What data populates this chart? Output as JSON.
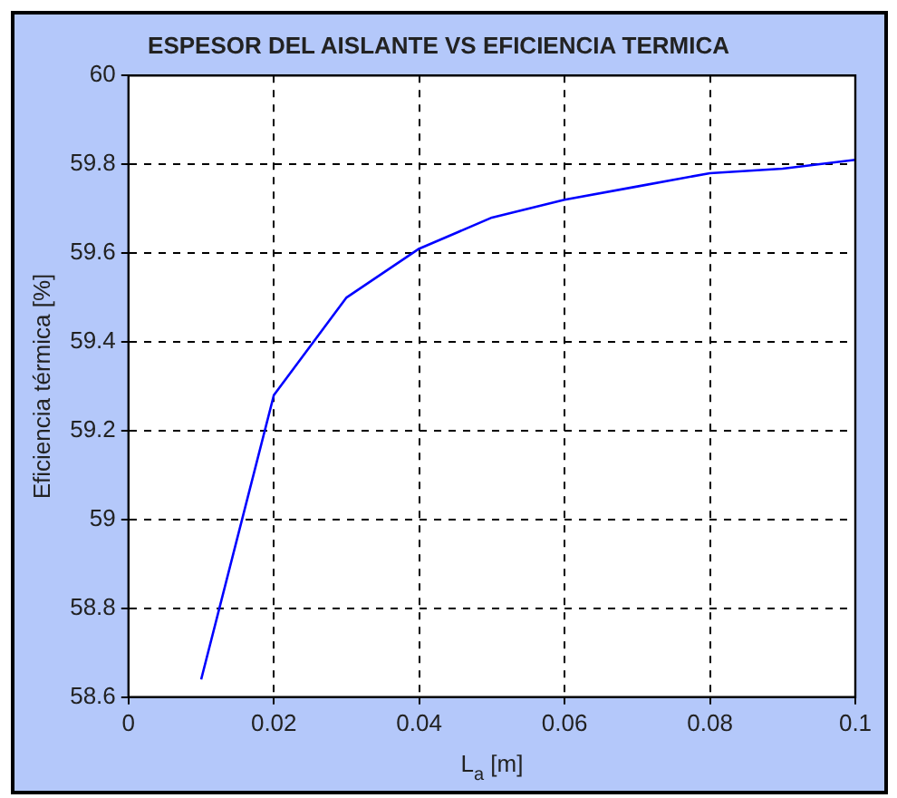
{
  "chart_data": {
    "type": "line",
    "title": "ESPESOR DEL AISLANTE VS EFICIENCIA TERMICA",
    "xlabel": "L$_{a}$ [m]",
    "ylabel": "Eficiencia térmica [%]",
    "x": [
      0.01,
      0.02,
      0.03,
      0.04,
      0.05,
      0.06,
      0.07,
      0.08,
      0.09,
      0.1
    ],
    "series": [
      {
        "color": "#0000ff",
        "values": [
          58.64,
          59.28,
          59.5,
          59.61,
          59.68,
          59.72,
          59.75,
          59.78,
          59.79,
          59.81
        ]
      }
    ],
    "xlim": [
      0,
      0.1
    ],
    "xticks": [
      0,
      0.02,
      0.04,
      0.06,
      0.08,
      0.1
    ],
    "ylim": [
      58.6,
      60
    ],
    "yticks": [
      58.6,
      58.8,
      59,
      59.2,
      59.4,
      59.6,
      59.8,
      60
    ],
    "grid": true,
    "legend": false,
    "marker": "none",
    "line_style": "solid"
  }
}
